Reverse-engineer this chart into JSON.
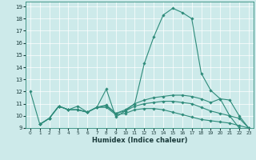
{
  "title": "",
  "xlabel": "Humidex (Indice chaleur)",
  "ylabel": "",
  "background_color": "#cdeaea",
  "grid_color": "#ffffff",
  "line_color": "#2e8b7a",
  "xlim": [
    -0.5,
    23.5
  ],
  "ylim": [
    9,
    19.4
  ],
  "xticks": [
    0,
    1,
    2,
    3,
    4,
    5,
    6,
    7,
    8,
    9,
    10,
    11,
    12,
    13,
    14,
    15,
    16,
    17,
    18,
    19,
    20,
    21,
    22,
    23
  ],
  "yticks": [
    9,
    10,
    11,
    12,
    13,
    14,
    15,
    16,
    17,
    18,
    19
  ],
  "lines": [
    {
      "x": [
        0,
        1,
        2,
        3,
        4,
        5,
        6,
        7,
        8,
        9,
        10,
        11,
        12,
        13,
        14,
        15,
        16,
        17,
        18,
        19,
        20,
        21,
        22
      ],
      "y": [
        12.0,
        9.3,
        9.8,
        10.8,
        10.5,
        10.8,
        10.3,
        10.7,
        12.2,
        9.9,
        10.4,
        11.0,
        14.3,
        16.5,
        18.3,
        18.85,
        18.5,
        18.0,
        13.5,
        12.1,
        11.4,
        10.0,
        9.0
      ]
    },
    {
      "x": [
        1,
        2,
        3,
        4,
        5,
        6,
        7,
        8,
        9,
        10,
        11,
        12,
        13,
        14,
        15,
        16,
        17,
        18,
        19,
        20,
        21,
        22,
        23
      ],
      "y": [
        9.3,
        9.8,
        10.8,
        10.5,
        10.5,
        10.3,
        10.7,
        10.9,
        10.2,
        10.5,
        11.0,
        11.3,
        11.5,
        11.6,
        11.7,
        11.7,
        11.6,
        11.4,
        11.1,
        11.4,
        11.3,
        10.0,
        9.0
      ]
    },
    {
      "x": [
        1,
        2,
        3,
        4,
        5,
        6,
        7,
        8,
        9,
        10,
        11,
        12,
        13,
        14,
        15,
        16,
        17,
        18,
        19,
        20,
        21,
        22,
        23
      ],
      "y": [
        9.3,
        9.8,
        10.8,
        10.5,
        10.5,
        10.3,
        10.7,
        10.8,
        10.2,
        10.4,
        10.8,
        11.0,
        11.1,
        11.2,
        11.2,
        11.1,
        11.0,
        10.7,
        10.4,
        10.2,
        10.0,
        9.8,
        9.0
      ]
    },
    {
      "x": [
        1,
        2,
        3,
        4,
        5,
        6,
        7,
        8,
        9,
        10,
        11,
        12,
        13,
        14,
        15,
        16,
        17,
        18,
        19,
        20,
        21,
        22,
        23
      ],
      "y": [
        9.3,
        9.8,
        10.8,
        10.5,
        10.5,
        10.3,
        10.7,
        10.7,
        10.1,
        10.2,
        10.5,
        10.6,
        10.6,
        10.5,
        10.3,
        10.1,
        9.9,
        9.7,
        9.6,
        9.5,
        9.4,
        9.2,
        9.0
      ]
    }
  ]
}
